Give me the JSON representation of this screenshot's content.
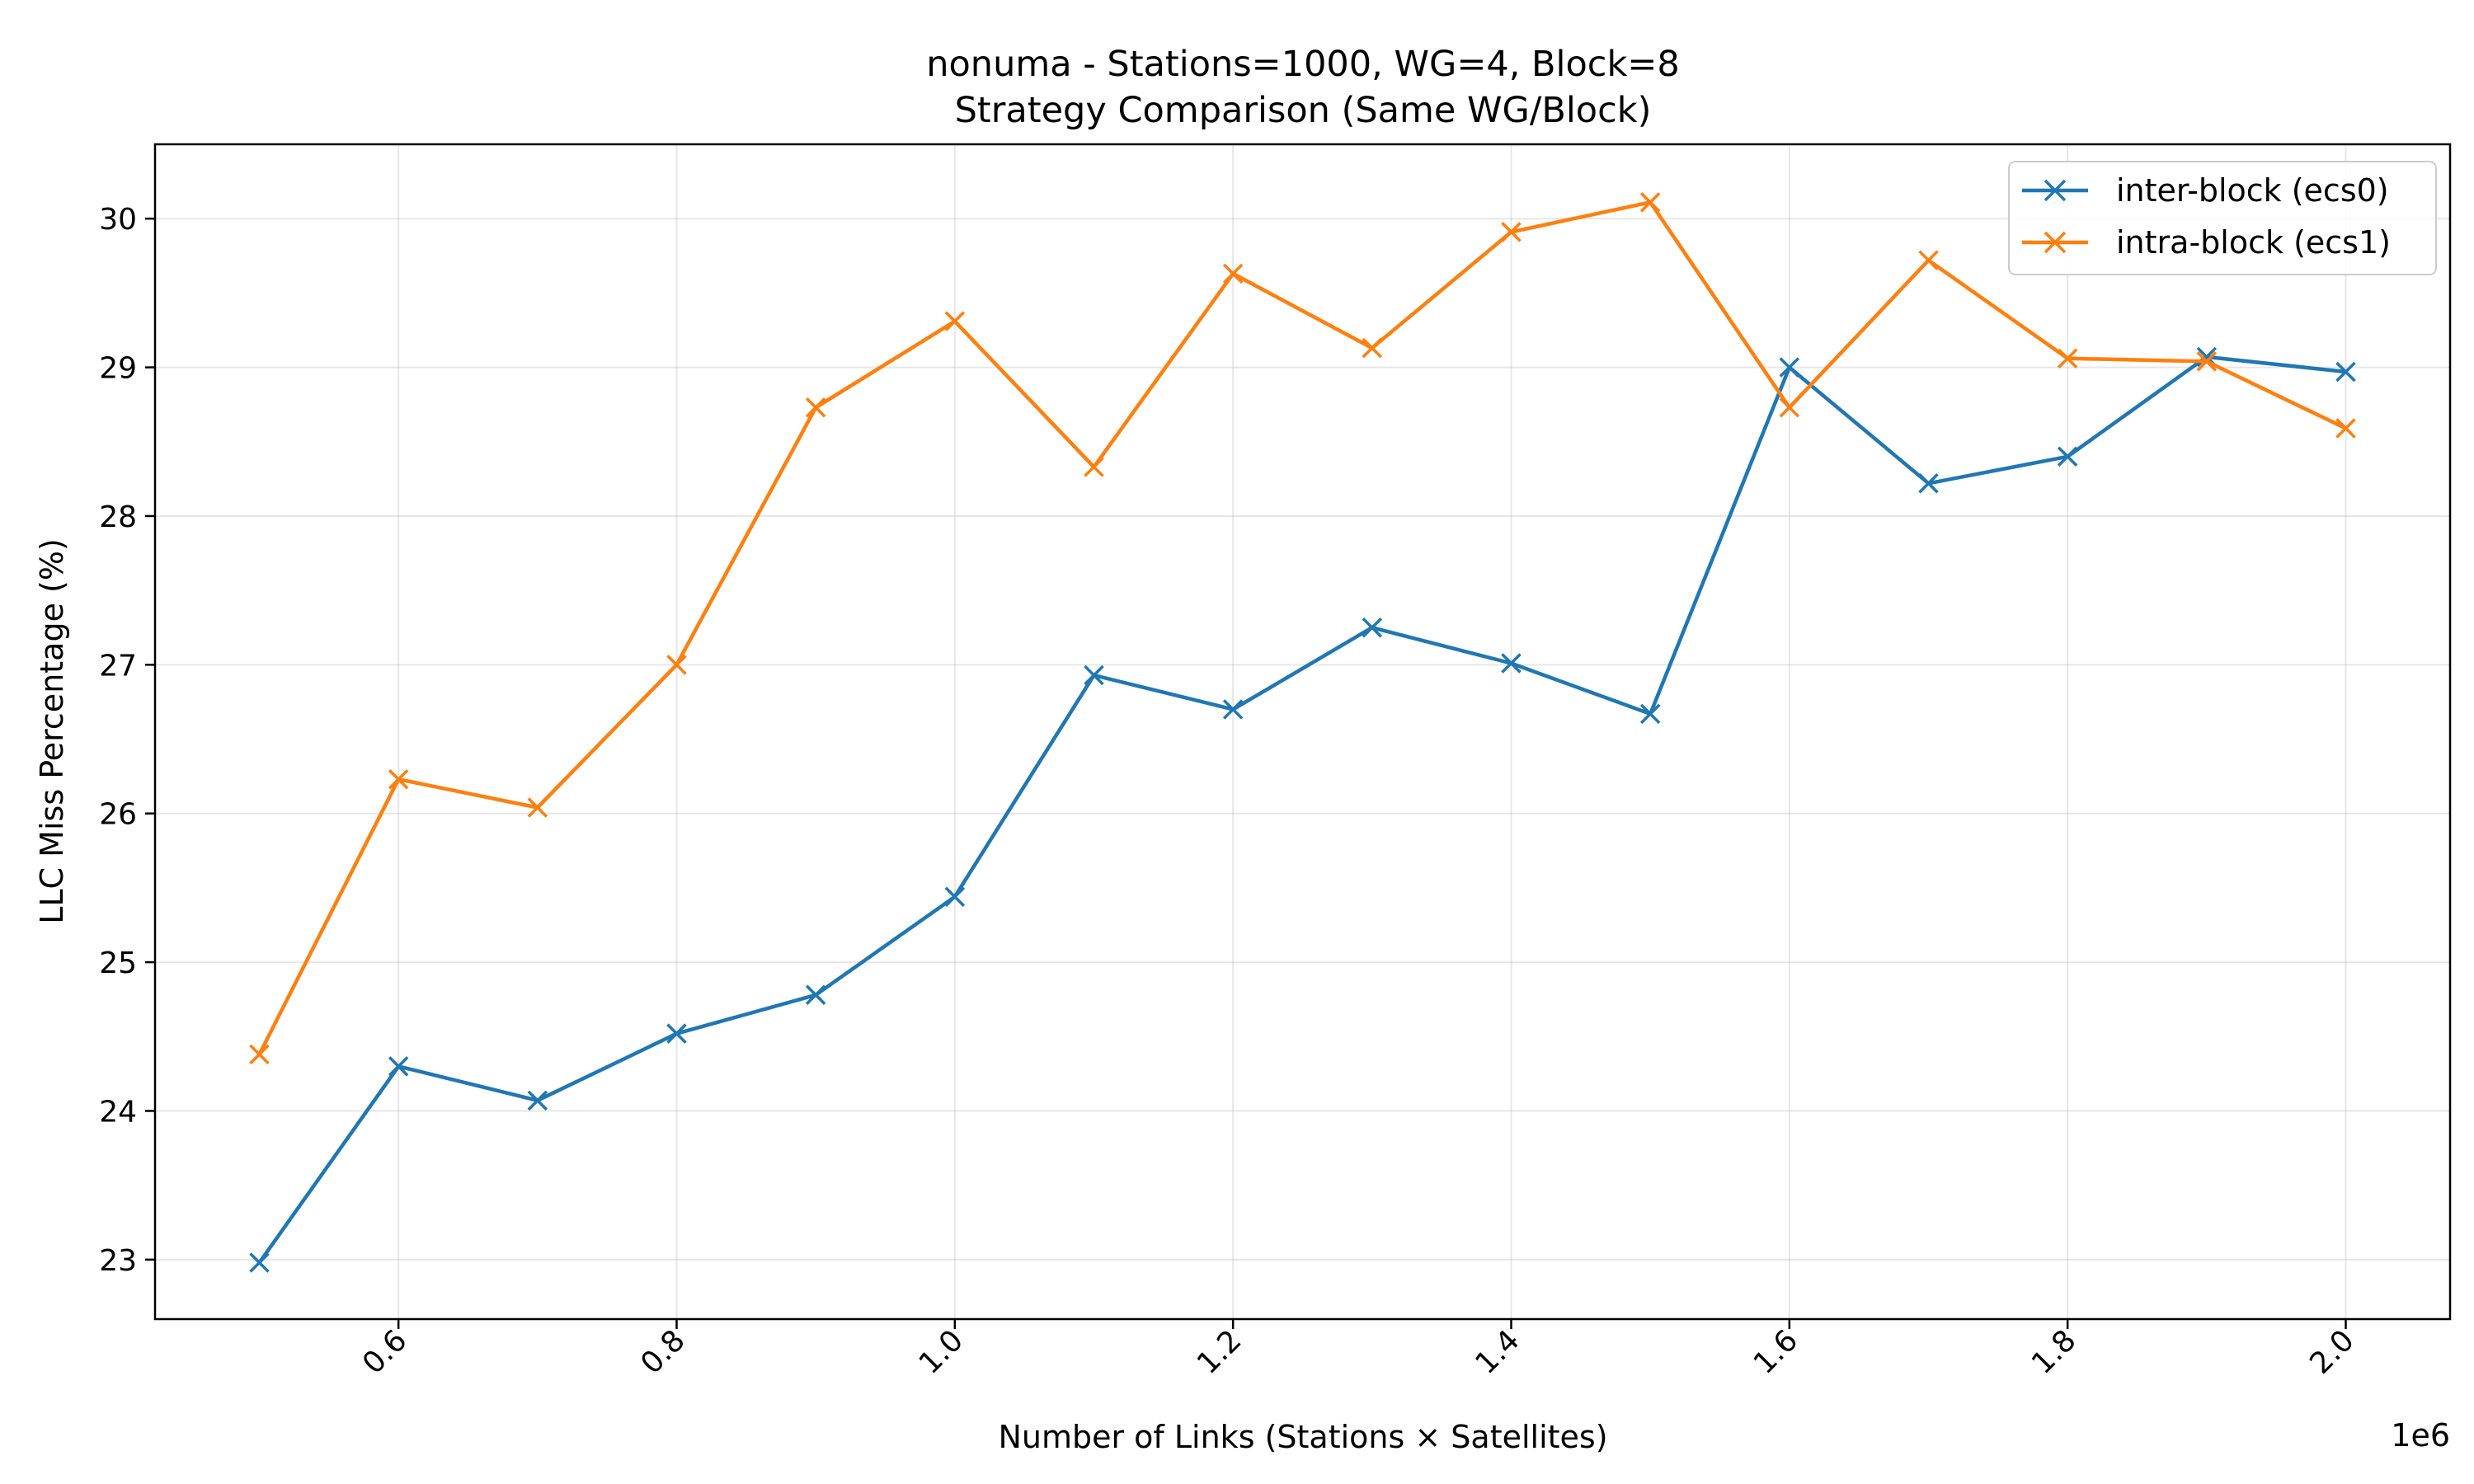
{
  "chart_data": {
    "type": "line",
    "title": "nonuma - Stations=1000, WG=4, Block=8",
    "subtitle": "Strategy Comparison (Same WG/Block)",
    "xlabel": "Number of Links (Stations × Satellites)",
    "ylabel": "LLC Miss Percentage (%)",
    "x_offset_label": "1e6",
    "x": [
      0.5,
      0.6,
      0.7,
      0.8,
      0.9,
      1.0,
      1.1,
      1.2,
      1.3,
      1.4,
      1.5,
      1.6,
      1.7,
      1.8,
      1.9,
      2.0
    ],
    "xlim": [
      0.425,
      2.075
    ],
    "ylim": [
      22.6,
      30.5
    ],
    "x_ticks": [
      0.6,
      0.8,
      1.0,
      1.2,
      1.4,
      1.6,
      1.8,
      2.0
    ],
    "x_tick_labels": [
      "0.6",
      "0.8",
      "1.0",
      "1.2",
      "1.4",
      "1.6",
      "1.8",
      "2.0"
    ],
    "y_ticks": [
      23,
      24,
      25,
      26,
      27,
      28,
      29,
      30
    ],
    "y_tick_labels": [
      "23",
      "24",
      "25",
      "26",
      "27",
      "28",
      "29",
      "30"
    ],
    "grid": true,
    "legend_position": "top-right",
    "series": [
      {
        "name": "inter-block (ecs0)",
        "color": "#1f77b4",
        "marker": "x",
        "values": [
          22.98,
          24.3,
          24.07,
          24.52,
          24.78,
          25.44,
          26.93,
          26.7,
          27.25,
          27.01,
          26.67,
          29.0,
          28.22,
          28.4,
          29.07,
          28.97
        ]
      },
      {
        "name": "intra-block (ecs1)",
        "color": "#ff7f0e",
        "marker": "x",
        "values": [
          24.38,
          26.23,
          26.04,
          27.0,
          28.73,
          29.31,
          28.33,
          29.63,
          29.13,
          29.91,
          30.11,
          28.73,
          29.72,
          29.06,
          29.04,
          28.59
        ]
      }
    ]
  }
}
